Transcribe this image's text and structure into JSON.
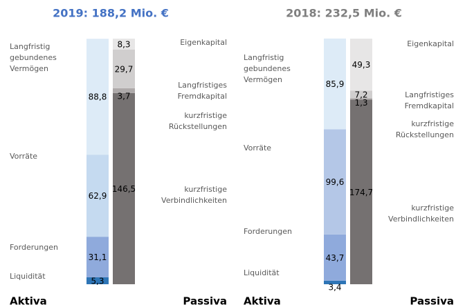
{
  "chart_data": [
    {
      "type": "balance-stack",
      "title": "2019: 188,2 Mio. €",
      "title_color": "#4472c4",
      "ylim": [
        0,
        188.2
      ],
      "stacks": [
        {
          "name": "Aktiva",
          "segments": [
            {
              "name": "Liquidität",
              "value": 5.3,
              "value_label": "5,3",
              "color": "#2e75b6"
            },
            {
              "name": "Forderungen",
              "value": 31.1,
              "value_label": "31,1",
              "color": "#8faadc"
            },
            {
              "name": "Vorräte",
              "value": 62.9,
              "value_label": "62,9",
              "color": "#c5daf0"
            },
            {
              "name": "Langfristig gebundenes Vermögen",
              "value": 88.8,
              "value_label": "88,8",
              "color": "#ddebf7"
            }
          ]
        },
        {
          "name": "Passiva",
          "segments": [
            {
              "name": "kurzfristige Verbindlichkeiten",
              "value": 146.5,
              "value_label": "146,5",
              "color": "#757171"
            },
            {
              "name": "kurzfristige Rückstellungen",
              "value": 3.7,
              "value_label": "3,7",
              "color": "#aeaaaa"
            },
            {
              "name": "Langfristiges Fremdkapital",
              "value": 29.7,
              "value_label": "29,7",
              "color": "#d0cece"
            },
            {
              "name": "Eigenkapital",
              "value": 8.3,
              "value_label": "8,3",
              "color": "#e7e6e6"
            }
          ]
        }
      ]
    },
    {
      "type": "balance-stack",
      "title": "2018: 232,5 Mio. €",
      "title_color": "#7f7f7f",
      "ylim": [
        0,
        232.5
      ],
      "stacks": [
        {
          "name": "Aktiva",
          "segments": [
            {
              "name": "Liquidität",
              "value": 3.4,
              "value_label": "3,4",
              "color": "#2e75b6"
            },
            {
              "name": "Forderungen",
              "value": 43.7,
              "value_label": "43,7",
              "color": "#8faadc"
            },
            {
              "name": "Vorräte",
              "value": 99.6,
              "value_label": "99,6",
              "color": "#b4c7e7"
            },
            {
              "name": "Langfristig gebundenes Vermögen",
              "value": 85.9,
              "value_label": "85,9",
              "color": "#ddebf7"
            }
          ]
        },
        {
          "name": "Passiva",
          "segments": [
            {
              "name": "kurzfristige Verbindlichkeiten",
              "value": 174.7,
              "value_label": "174,7",
              "color": "#757171"
            },
            {
              "name": "kurzfristige Rückstellungen",
              "value": 1.3,
              "value_label": "1,3",
              "color": "#aeaaaa"
            },
            {
              "name": "Langfristiges Fremdkapital",
              "value": 7.2,
              "value_label": "7,2",
              "color": "#d0cece"
            },
            {
              "name": "Eigenkapital",
              "value": 49.3,
              "value_label": "49,3",
              "color": "#e7e6e6"
            }
          ]
        }
      ]
    }
  ]
}
